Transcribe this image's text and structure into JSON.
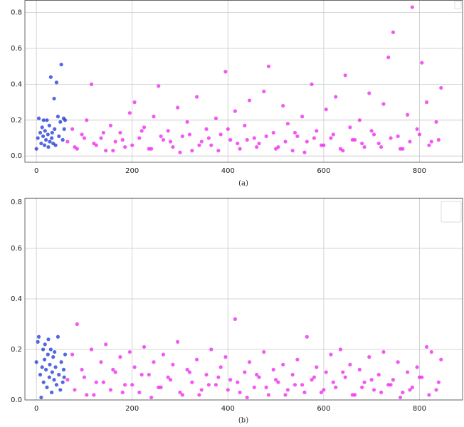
{
  "chart_data": [
    {
      "type": "scatter",
      "caption": "(a)",
      "xlim": [
        -24,
        890
      ],
      "ylim": [
        -0.035,
        0.87
      ],
      "xticks": [
        0,
        200,
        400,
        600,
        800
      ],
      "yticks": [
        {
          "value": 0,
          "label": "0.0"
        },
        0.2,
        0.4,
        0.6,
        0.8
      ],
      "grid": true,
      "series": [
        {
          "color": "#1a35d6",
          "x": [
            0,
            3,
            5,
            8,
            10,
            12,
            14,
            15,
            17,
            18,
            20,
            22,
            24,
            25,
            27,
            28,
            30,
            32,
            33,
            35,
            37,
            38,
            40,
            42,
            45,
            47,
            50,
            52,
            55,
            57,
            58,
            60
          ],
          "values": [
            0.04,
            0.1,
            0.21,
            0.13,
            0.07,
            0.16,
            0.11,
            0.2,
            0.06,
            0.14,
            0.09,
            0.2,
            0.12,
            0.05,
            0.17,
            0.08,
            0.44,
            0.1,
            0.13,
            0.07,
            0.32,
            0.15,
            0.06,
            0.41,
            0.22,
            0.11,
            0.19,
            0.51,
            0.09,
            0.21,
            0.15,
            0.2
          ]
        },
        {
          "color": "#ee22ee",
          "x": [
            65,
            75,
            85,
            95,
            105,
            115,
            125,
            135,
            145,
            155,
            165,
            175,
            185,
            195,
            205,
            215,
            225,
            235,
            245,
            255,
            265,
            275,
            285,
            295,
            305,
            315,
            325,
            335,
            345,
            355,
            365,
            375,
            385,
            395,
            405,
            415,
            425,
            435,
            445,
            455,
            465,
            475,
            485,
            495,
            505,
            515,
            525,
            535,
            545,
            555,
            565,
            575,
            585,
            595,
            605,
            615,
            625,
            635,
            645,
            655,
            665,
            675,
            685,
            695,
            705,
            715,
            725,
            735,
            745,
            755,
            765,
            775,
            785,
            795,
            805,
            815,
            825,
            835,
            845,
            80,
            100,
            120,
            140,
            160,
            180,
            200,
            220,
            240,
            260,
            280,
            300,
            320,
            340,
            360,
            380,
            400,
            420,
            440,
            460,
            480,
            500,
            520,
            540,
            560,
            580,
            600,
            620,
            640,
            660,
            680,
            700,
            720,
            740,
            760,
            780,
            800,
            820,
            840
          ],
          "values": [
            0.08,
            0.15,
            0.04,
            0.12,
            0.2,
            0.4,
            0.06,
            0.1,
            0.03,
            0.17,
            0.08,
            0.13,
            0.05,
            0.24,
            0.3,
            0.1,
            0.16,
            0.04,
            0.22,
            0.39,
            0.09,
            0.14,
            0.05,
            0.27,
            0.11,
            0.19,
            0.03,
            0.33,
            0.08,
            0.15,
            0.06,
            0.21,
            0.12,
            0.47,
            0.09,
            0.25,
            0.04,
            0.17,
            0.31,
            0.1,
            0.07,
            0.36,
            0.5,
            0.13,
            0.05,
            0.28,
            0.18,
            0.03,
            0.11,
            0.22,
            0.08,
            0.4,
            0.14,
            0.06,
            0.26,
            0.1,
            0.33,
            0.04,
            0.45,
            0.16,
            0.09,
            0.2,
            0.05,
            0.35,
            0.12,
            0.07,
            0.29,
            0.55,
            0.69,
            0.11,
            0.04,
            0.23,
            0.83,
            0.15,
            0.52,
            0.3,
            0.08,
            0.19,
            0.38,
            0.05,
            0.1,
            0.07,
            0.13,
            0.03,
            0.09,
            0.06,
            0.14,
            0.04,
            0.11,
            0.08,
            0.02,
            0.12,
            0.06,
            0.1,
            0.03,
            0.15,
            0.07,
            0.09,
            0.05,
            0.11,
            0.04,
            0.08,
            0.13,
            0.02,
            0.1,
            0.06,
            0.12,
            0.03,
            0.09,
            0.07,
            0.14,
            0.05,
            0.1,
            0.04,
            0.08,
            0.12,
            0.06,
            0.09
          ]
        }
      ]
    },
    {
      "type": "scatter",
      "caption": "(b)",
      "xlim": [
        -24,
        890
      ],
      "ylim": [
        0,
        0.8
      ],
      "xticks": [
        0,
        200,
        400,
        600,
        800
      ],
      "yticks": [
        {
          "value": 0,
          "label": "0.0"
        },
        0.2,
        0.4,
        0.6,
        0.8
      ],
      "grid": true,
      "series": [
        {
          "color": "#1a35d6",
          "x": [
            0,
            3,
            5,
            8,
            10,
            12,
            14,
            15,
            17,
            18,
            20,
            22,
            24,
            25,
            27,
            28,
            30,
            32,
            33,
            35,
            37,
            38,
            40,
            42,
            45,
            47,
            50,
            52,
            55,
            57,
            58,
            60
          ],
          "values": [
            0.15,
            0.23,
            0.25,
            0.1,
            0.01,
            0.13,
            0.2,
            0.07,
            0.16,
            0.22,
            0.12,
            0.05,
            0.18,
            0.24,
            0.09,
            0.14,
            0.2,
            0.03,
            0.11,
            0.17,
            0.08,
            0.19,
            0.13,
            0.06,
            0.25,
            0.1,
            0.04,
            0.15,
            0.07,
            0.12,
            0.09,
            0.18
          ]
        },
        {
          "color": "#ee22ee",
          "x": [
            65,
            75,
            85,
            95,
            105,
            115,
            125,
            135,
            145,
            155,
            165,
            175,
            185,
            195,
            205,
            215,
            225,
            235,
            245,
            255,
            265,
            275,
            285,
            295,
            305,
            315,
            325,
            335,
            345,
            355,
            365,
            375,
            385,
            395,
            405,
            415,
            425,
            435,
            445,
            455,
            465,
            475,
            485,
            495,
            505,
            515,
            525,
            535,
            545,
            555,
            565,
            575,
            585,
            595,
            605,
            615,
            625,
            635,
            645,
            655,
            665,
            675,
            685,
            695,
            705,
            715,
            725,
            735,
            745,
            755,
            765,
            775,
            785,
            795,
            805,
            815,
            825,
            835,
            845,
            80,
            100,
            120,
            140,
            160,
            180,
            200,
            220,
            240,
            260,
            280,
            300,
            320,
            340,
            360,
            380,
            400,
            420,
            440,
            460,
            480,
            500,
            520,
            540,
            560,
            580,
            600,
            620,
            640,
            660,
            680,
            700,
            720,
            740,
            760,
            780,
            800,
            820,
            840
          ],
          "values": [
            0.08,
            0.18,
            0.3,
            0.12,
            0.02,
            0.2,
            0.07,
            0.15,
            0.22,
            0.04,
            0.11,
            0.17,
            0.06,
            0.19,
            0.13,
            0.03,
            0.21,
            0.1,
            0.15,
            0.05,
            0.18,
            0.09,
            0.14,
            0.23,
            0.02,
            0.12,
            0.07,
            0.16,
            0.04,
            0.1,
            0.2,
            0.06,
            0.13,
            0.17,
            0.08,
            0.32,
            0.03,
            0.11,
            0.15,
            0.05,
            0.09,
            0.19,
            0.02,
            0.12,
            0.07,
            0.14,
            0.04,
            0.1,
            0.16,
            0.06,
            0.25,
            0.08,
            0.13,
            0.03,
            0.11,
            0.18,
            0.05,
            0.2,
            0.09,
            0.14,
            0.02,
            0.12,
            0.07,
            0.17,
            0.04,
            0.1,
            0.19,
            0.06,
            0.08,
            0.15,
            0.03,
            0.11,
            0.05,
            0.13,
            0.09,
            0.21,
            0.19,
            0.04,
            0.16,
            0.04,
            0.09,
            0.02,
            0.07,
            0.12,
            0.03,
            0.06,
            0.1,
            0.01,
            0.05,
            0.08,
            0.03,
            0.11,
            0.02,
            0.06,
            0.09,
            0.04,
            0.07,
            0.01,
            0.1,
            0.05,
            0.08,
            0.02,
            0.06,
            0.03,
            0.09,
            0.04,
            0.07,
            0.11,
            0.02,
            0.05,
            0.08,
            0.03,
            0.06,
            0.01,
            0.04,
            0.09,
            0.02,
            0.07
          ]
        }
      ]
    }
  ]
}
